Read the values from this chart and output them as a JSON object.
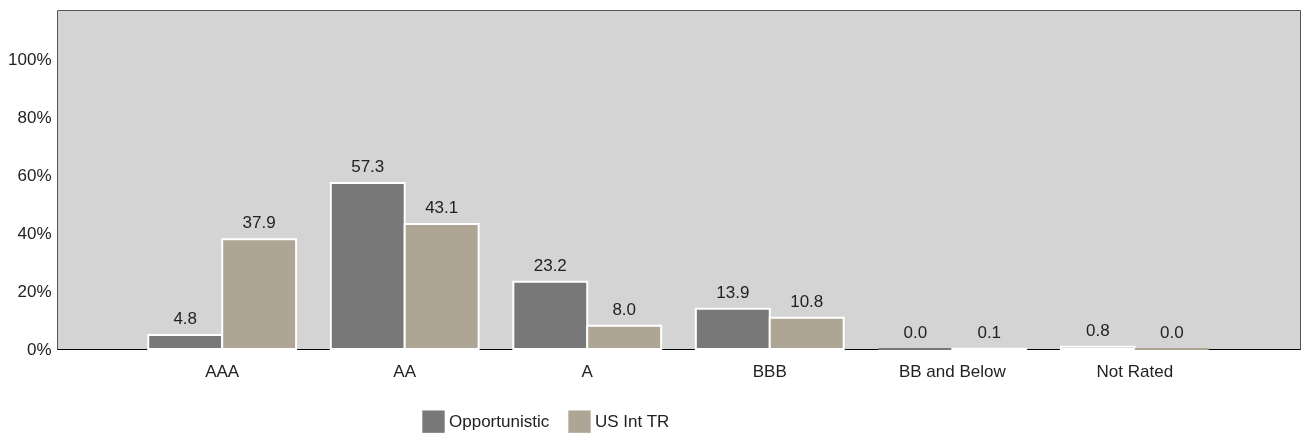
{
  "chart_data": {
    "type": "bar",
    "categories": [
      "AAA",
      "AA",
      "A",
      "BBB",
      "BB and Below",
      "Not Rated"
    ],
    "series": [
      {
        "name": "Opportunistic",
        "color": "#787878",
        "values": [
          4.8,
          57.3,
          23.2,
          13.9,
          0.0,
          0.8
        ],
        "value_labels": [
          "4.8",
          "57.3",
          "23.2",
          "13.9",
          "0.0",
          "0.8"
        ]
      },
      {
        "name": "US Int TR",
        "color": "#afa594",
        "values": [
          37.9,
          43.1,
          8.0,
          10.8,
          0.1,
          0.0
        ],
        "value_labels": [
          "37.9",
          "43.1",
          "8.0",
          "10.8",
          "0.1",
          "0.0"
        ]
      }
    ],
    "ylim": [
      0,
      117
    ],
    "yticks": [
      {
        "value": 0,
        "label": "0%"
      },
      {
        "value": 20,
        "label": "20%"
      },
      {
        "value": 40,
        "label": "40%"
      },
      {
        "value": 60,
        "label": "60%"
      },
      {
        "value": 80,
        "label": "80%"
      },
      {
        "value": 100,
        "label": "100%"
      }
    ],
    "grid": false,
    "legend": "bottom"
  }
}
